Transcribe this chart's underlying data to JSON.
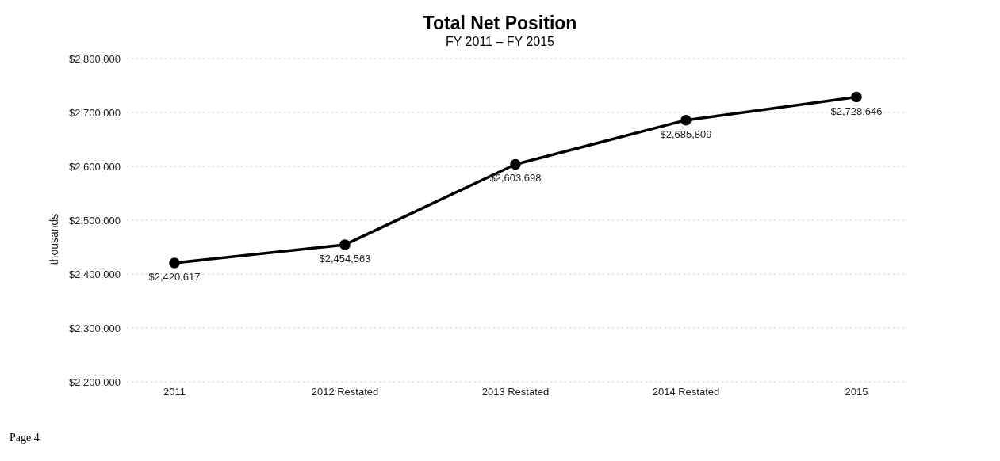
{
  "chart_data": {
    "type": "line",
    "title": "Total Net Position",
    "subtitle": "FY 2011 – FY 2015",
    "ylabel": "thousands",
    "categories": [
      "2011",
      "2012 Restated",
      "2013 Restated",
      "2014 Restated",
      "2015"
    ],
    "series": [
      {
        "color": "#000000",
        "values": [
          2420617,
          2454563,
          2603698,
          2685809,
          2728646
        ],
        "value_labels": [
          "$2,420,617",
          "$2,454,563",
          "$2,603,698",
          "$2,685,809",
          "$2,728,646"
        ]
      }
    ],
    "ylim": [
      2200000,
      2800000
    ],
    "yticks": [
      {
        "value": 2200000,
        "label": "$2,200,000"
      },
      {
        "value": 2300000,
        "label": "$2,300,000"
      },
      {
        "value": 2400000,
        "label": "$2,400,000"
      },
      {
        "value": 2500000,
        "label": "$2,500,000"
      },
      {
        "value": 2600000,
        "label": "$2,600,000"
      },
      {
        "value": 2700000,
        "label": "$2,700,000"
      },
      {
        "value": 2800000,
        "label": "$2,800,000"
      }
    ],
    "grid": "y",
    "marker": "circle",
    "line_style": "solid",
    "annotations": [
      "Page 4"
    ]
  }
}
